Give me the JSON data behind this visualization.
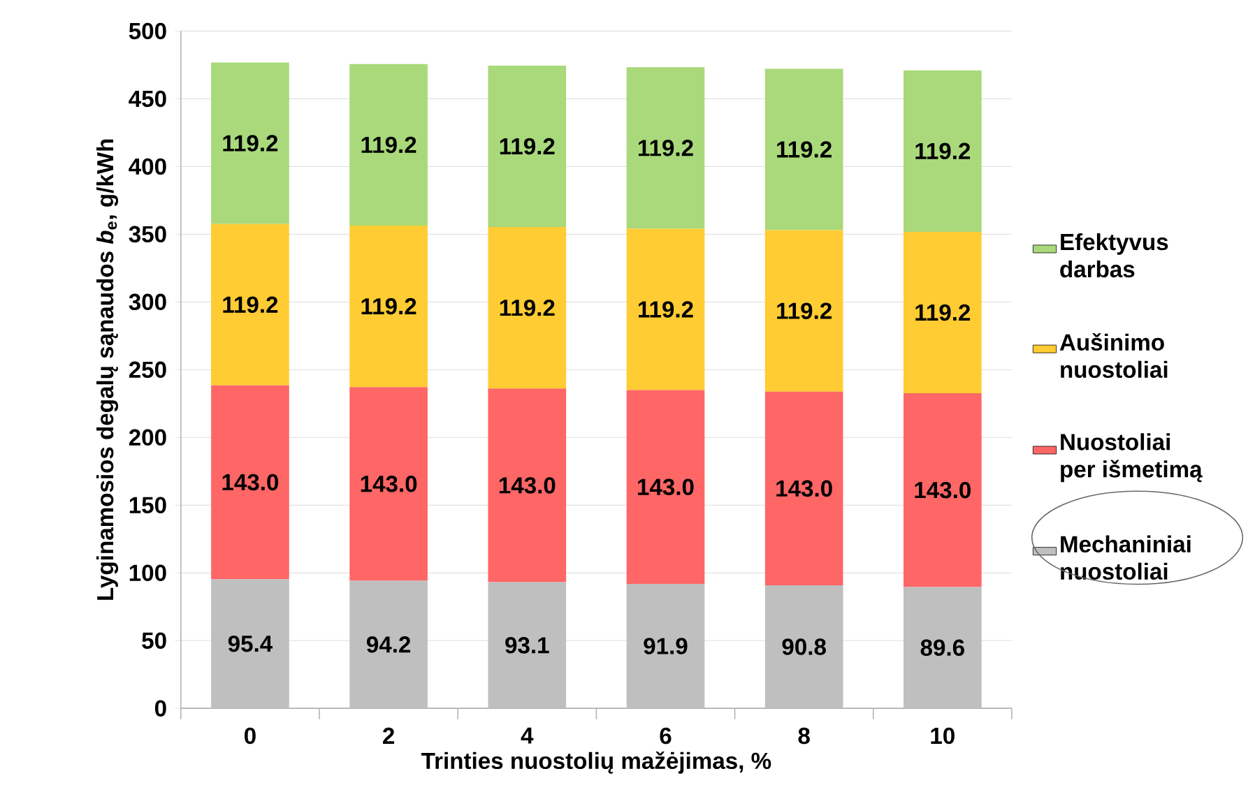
{
  "chart_data": {
    "type": "bar",
    "stacked": true,
    "xlabel": "Trinties nuostolių mažėjimas, %",
    "ylabel": "Lyginamosios degalų sąnaudos *b*$_{e}$, g/kWh",
    "categories": [
      "0",
      "2",
      "4",
      "6",
      "8",
      "10"
    ],
    "series": [
      {
        "name": "Mechaniniai nuostoliai",
        "color": "#bfbfbf",
        "values": [
          95.4,
          94.2,
          93.1,
          91.9,
          90.8,
          89.6
        ],
        "value_labels": [
          "95.4",
          "94.2",
          "93.1",
          "91.9",
          "90.8",
          "89.6"
        ]
      },
      {
        "name": "Nuostoliai per išmetimą",
        "color": "#ff6666",
        "values": [
          143.0,
          143.0,
          143.0,
          143.0,
          143.0,
          143.0
        ],
        "value_labels": [
          "143.0",
          "143.0",
          "143.0",
          "143.0",
          "143.0",
          "143.0"
        ]
      },
      {
        "name": "Aušinimo nuostoliai",
        "color": "#ffcc33",
        "values": [
          119.2,
          119.2,
          119.2,
          119.2,
          119.2,
          119.2
        ],
        "value_labels": [
          "119.2",
          "119.2",
          "119.2",
          "119.2",
          "119.2",
          "119.2"
        ]
      },
      {
        "name": "Efektyvus darbas",
        "color": "#a9d97a",
        "values": [
          119.2,
          119.2,
          119.2,
          119.2,
          119.2,
          119.2
        ],
        "value_labels": [
          "119.2",
          "119.2",
          "119.2",
          "119.2",
          "119.2",
          "119.2"
        ]
      }
    ],
    "ylim": [
      0,
      500
    ],
    "yticks": [
      0,
      50,
      100,
      150,
      200,
      250,
      300,
      350,
      400,
      450,
      500
    ],
    "grid": "y",
    "legend": "right"
  }
}
